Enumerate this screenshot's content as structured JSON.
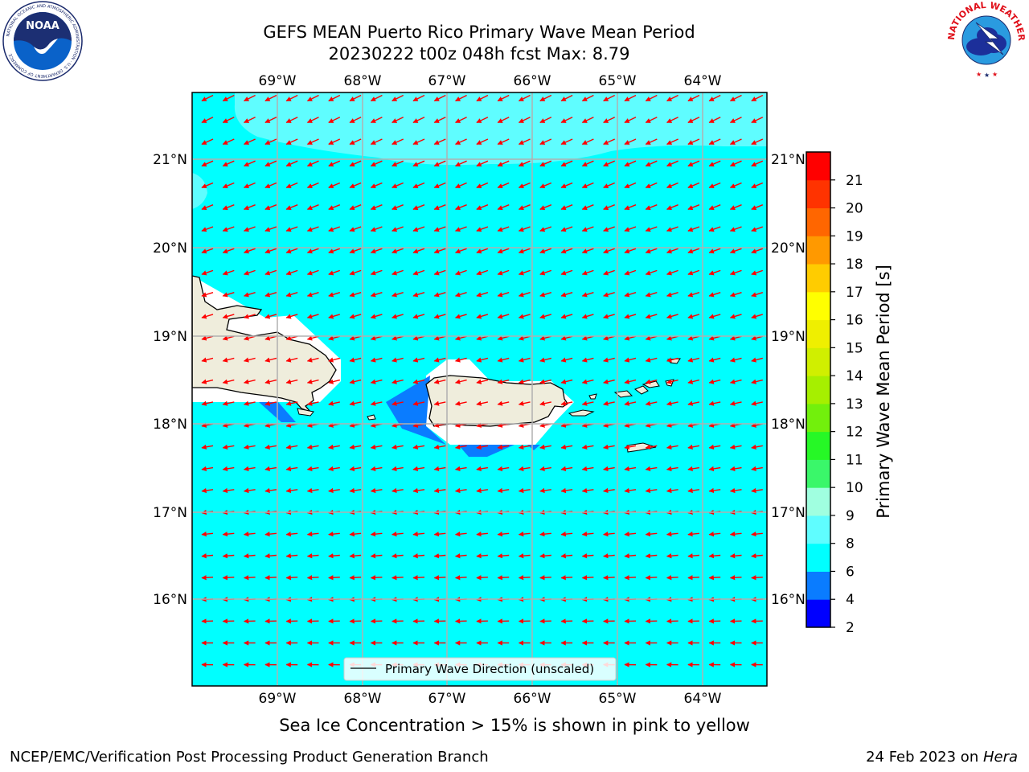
{
  "header": {
    "title_line1": "GEFS MEAN Puerto Rico Primary Wave Mean Period",
    "title_line2": "20230222 t00z 048h fcst   Max: 8.79"
  },
  "logos": {
    "noaa_text": "NOAA",
    "noaa_ring_text": "NATIONAL OCEANIC AND ATMOSPHERIC ADMINISTRATION · U.S. DEPARTMENT OF COMMERCE",
    "nws_ring_text": "NATIONAL WEATHER SERVICE"
  },
  "map": {
    "lon_labels": [
      "69°W",
      "68°W",
      "67°W",
      "66°W",
      "65°W",
      "64°W"
    ],
    "lat_labels": [
      "21°N",
      "20°N",
      "19°N",
      "18°N",
      "17°N",
      "16°N"
    ],
    "legend_label": "Primary Wave Direction (unscaled)",
    "arrow_color": "#ff0000",
    "ocean_color": "#00ffff",
    "land_color": "#efeddc"
  },
  "colorbar": {
    "label": "Primary Wave Mean Period [s]",
    "ticks": [
      "2",
      "4",
      "6",
      "8",
      "9",
      "10",
      "11",
      "12",
      "13",
      "14",
      "15",
      "16",
      "17",
      "18",
      "19",
      "20",
      "21"
    ],
    "colors": [
      "#0000ff",
      "#0a7cff",
      "#00ffff",
      "#5ffdff",
      "#a0ffe0",
      "#3af76a",
      "#26f826",
      "#72f00c",
      "#a6ef00",
      "#d0ef00",
      "#efef00",
      "#ffff00",
      "#ffcc00",
      "#ff9900",
      "#ff6600",
      "#ff3300",
      "#ff0000"
    ]
  },
  "notes": {
    "sea_ice": "Sea Ice Concentration > 15% is shown in pink to yellow"
  },
  "footer": {
    "left": "NCEP/EMC/Verification Post Processing Product Generation Branch",
    "date": "24 Feb 2023 on ",
    "host": "Hera"
  }
}
